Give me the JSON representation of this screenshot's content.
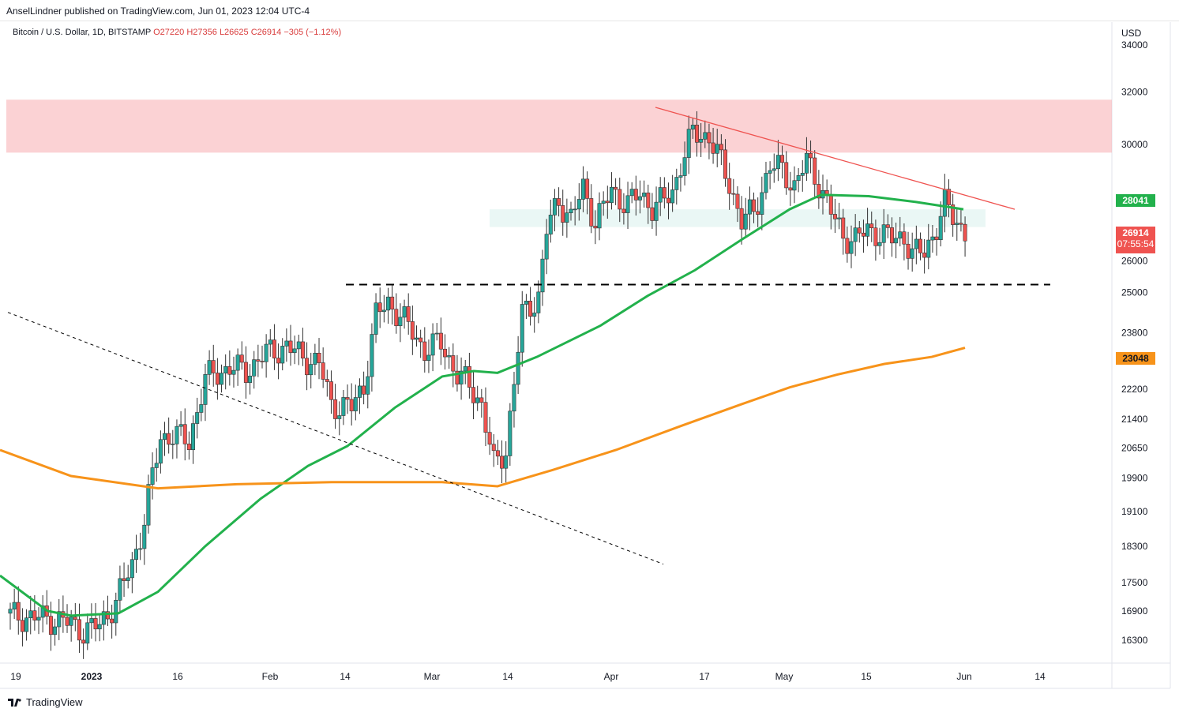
{
  "header": {
    "publisher": "AnselLindner published on TradingView.com, Jun 01, 2023 12:04 UTC-4"
  },
  "legend": {
    "symbol": "Bitcoin / U.S. Dollar, 1D, BITSTAMP",
    "o": "O27220",
    "h": "H27356",
    "l": "L26625",
    "c": "C26914",
    "change": "−305 (−1.12%)"
  },
  "axis": {
    "currency": "USD"
  },
  "badges": {
    "ma50": "28041",
    "price": "26914",
    "countdown": "07:55:54",
    "ma200": "23048"
  },
  "footer": {
    "brand": "TradingView"
  },
  "colors": {
    "up": "#26a69a",
    "down": "#ef5350",
    "ma50": "#22b14c",
    "ma200": "#f7931a",
    "resistance_zone": "#f8b4b8",
    "support_zone": "#d9f0ec"
  },
  "chart_data": {
    "type": "candlestick",
    "y_axis_ticks": [
      "34000",
      "32000",
      "30000",
      "28000",
      "26000",
      "25000",
      "23800",
      "22200",
      "21400",
      "20650",
      "19900",
      "19100",
      "18300",
      "17500",
      "16900",
      "16300"
    ],
    "x_axis_ticks": [
      "19",
      "2023",
      "16",
      "Feb",
      "14",
      "Mar",
      "14",
      "Apr",
      "17",
      "May",
      "15",
      "Jun",
      "14"
    ],
    "price_scale": "log",
    "series": [
      {
        "name": "",
        "color": "#22b14c",
        "points": [
          [
            0,
            17650
          ],
          [
            60,
            16900
          ],
          [
            90,
            16800
          ],
          [
            150,
            16850
          ],
          [
            200,
            17300
          ],
          [
            260,
            18300
          ],
          [
            330,
            19400
          ],
          [
            390,
            20200
          ],
          [
            440,
            20700
          ],
          [
            500,
            21700
          ],
          [
            560,
            22550
          ],
          [
            600,
            22700
          ],
          [
            630,
            22650
          ],
          [
            680,
            23100
          ],
          [
            760,
            24000
          ],
          [
            820,
            24900
          ],
          [
            880,
            25700
          ],
          [
            940,
            26700
          ],
          [
            1000,
            27700
          ],
          [
            1040,
            28200
          ],
          [
            1100,
            28150
          ],
          [
            1160,
            27950
          ],
          [
            1220,
            27700
          ]
        ]
      },
      {
        "name": "",
        "color": "#f7931a",
        "points": [
          [
            0,
            20600
          ],
          [
            90,
            19950
          ],
          [
            200,
            19650
          ],
          [
            300,
            19750
          ],
          [
            420,
            19800
          ],
          [
            560,
            19800
          ],
          [
            630,
            19700
          ],
          [
            700,
            20100
          ],
          [
            780,
            20600
          ],
          [
            860,
            21200
          ],
          [
            940,
            21800
          ],
          [
            1000,
            22250
          ],
          [
            1060,
            22600
          ],
          [
            1120,
            22900
          ],
          [
            1180,
            23100
          ],
          [
            1222,
            23360
          ]
        ]
      }
    ],
    "annotations": [
      {
        "kind": "zone",
        "from": 29700,
        "to": 31700
      },
      {
        "kind": "zone",
        "from": 27100,
        "to": 27700
      },
      {
        "kind": "hline",
        "value": 25250,
        "style": "dashed"
      },
      {
        "kind": "trendline",
        "from": [
          830,
          31400
        ],
        "to": [
          1285,
          27700
        ]
      },
      {
        "kind": "trendline",
        "from": [
          10,
          24400
        ],
        "to": [
          840,
          17900
        ],
        "style": "dashed"
      }
    ]
  }
}
